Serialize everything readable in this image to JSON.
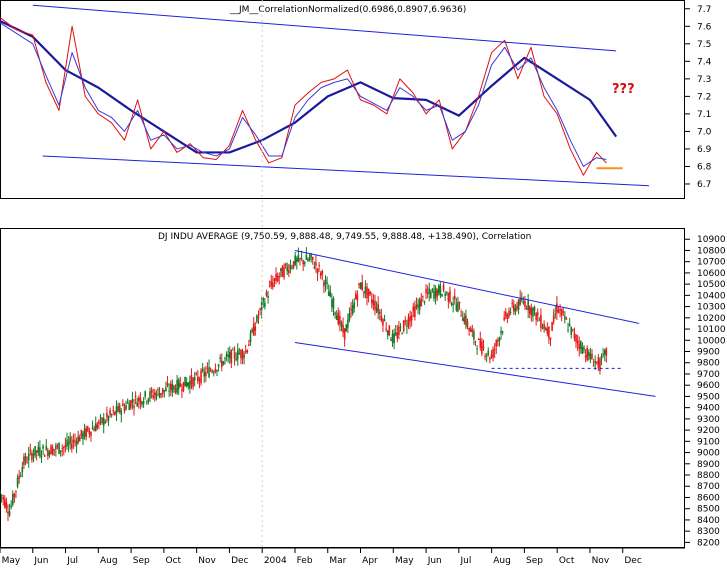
{
  "colors": {
    "background": "#ffffff",
    "frame": "#000000",
    "trendline": "#1f1fe0",
    "ma_line": "#1a1a9a",
    "price_line": "#e01010",
    "price_line2": "#3a3ad8",
    "up_bar": "#157a28",
    "down_bar": "#e51a1a",
    "marker": "#ff8c1a",
    "annotation": "#d01010"
  },
  "chart_data": [
    {
      "type": "line",
      "title": "__JM__CorrelationNormalized(0.6986,0.8907,6.9636)",
      "annotation": "???",
      "ylim": [
        6.62,
        7.75
      ],
      "yticks": [
        6.7,
        6.8,
        6.9,
        7.0,
        7.1,
        7.2,
        7.3,
        7.4,
        7.5,
        7.6,
        7.7
      ],
      "x_months": [
        "May",
        "Jun",
        "Jul",
        "Aug",
        "Sep",
        "Oct",
        "Nov",
        "Dec",
        "2004",
        "Feb",
        "Mar",
        "Apr",
        "May",
        "Jun",
        "Jul",
        "Aug",
        "Sep",
        "Oct",
        "Nov",
        "Dec"
      ],
      "series": [
        {
          "name": "moving average",
          "x": [
            0,
            1,
            2,
            3,
            4,
            5,
            6,
            7,
            8,
            9,
            10,
            11,
            12,
            13,
            14,
            15,
            16,
            17,
            18,
            18.8
          ],
          "values": [
            7.63,
            7.54,
            7.35,
            7.25,
            7.12,
            7.0,
            6.88,
            6.88,
            6.95,
            7.05,
            7.2,
            7.28,
            7.19,
            7.18,
            7.09,
            7.26,
            7.42,
            7.3,
            7.18,
            6.97
          ]
        },
        {
          "name": "oscillator fast",
          "x": [
            0,
            0.5,
            1,
            1.4,
            1.8,
            2.2,
            2.6,
            3,
            3.4,
            3.8,
            4.2,
            4.6,
            5,
            5.4,
            5.8,
            6.2,
            6.6,
            7,
            7.4,
            7.8,
            8.2,
            8.6,
            9,
            9.4,
            9.8,
            10.2,
            10.6,
            11,
            11.4,
            11.8,
            12.2,
            12.6,
            13,
            13.4,
            13.8,
            14.2,
            14.6,
            15,
            15.4,
            15.8,
            16.2,
            16.6,
            17,
            17.4,
            17.8,
            18.2,
            18.5
          ],
          "values": [
            7.65,
            7.58,
            7.55,
            7.28,
            7.12,
            7.6,
            7.2,
            7.1,
            7.05,
            6.95,
            7.18,
            6.9,
            7.0,
            6.88,
            6.93,
            6.85,
            6.84,
            6.92,
            7.12,
            6.95,
            6.82,
            6.85,
            7.15,
            7.22,
            7.28,
            7.3,
            7.35,
            7.18,
            7.15,
            7.1,
            7.3,
            7.22,
            7.1,
            7.18,
            6.9,
            7.0,
            7.2,
            7.45,
            7.52,
            7.3,
            7.48,
            7.2,
            7.1,
            6.9,
            6.75,
            6.88,
            6.82
          ]
        },
        {
          "name": "oscillator slow",
          "x": [
            0,
            0.5,
            1,
            1.4,
            1.8,
            2.2,
            2.6,
            3,
            3.4,
            3.8,
            4.2,
            4.6,
            5,
            5.4,
            5.8,
            6.2,
            6.6,
            7,
            7.4,
            7.8,
            8.2,
            8.6,
            9,
            9.4,
            9.8,
            10.2,
            10.6,
            11,
            11.4,
            11.8,
            12.2,
            12.6,
            13,
            13.4,
            13.8,
            14.2,
            14.6,
            15,
            15.4,
            15.8,
            16.2,
            16.6,
            17,
            17.4,
            17.8,
            18.2,
            18.5
          ],
          "values": [
            7.62,
            7.56,
            7.5,
            7.32,
            7.15,
            7.45,
            7.25,
            7.12,
            7.08,
            7.0,
            7.12,
            6.95,
            6.98,
            6.9,
            6.92,
            6.88,
            6.86,
            6.9,
            7.08,
            6.98,
            6.86,
            6.86,
            7.08,
            7.18,
            7.25,
            7.28,
            7.3,
            7.2,
            7.16,
            7.12,
            7.25,
            7.2,
            7.12,
            7.15,
            6.95,
            7.0,
            7.15,
            7.38,
            7.48,
            7.35,
            7.42,
            7.25,
            7.12,
            6.95,
            6.8,
            6.85,
            6.84
          ]
        },
        {
          "name": "upper channel",
          "x": [
            1.0,
            18.8
          ],
          "values": [
            7.72,
            7.46
          ]
        },
        {
          "name": "lower channel",
          "x": [
            1.3,
            19.8
          ],
          "values": [
            6.86,
            6.69
          ]
        },
        {
          "name": "support marker",
          "x": [
            18.2,
            19.0
          ],
          "values": [
            6.79,
            6.79
          ]
        }
      ]
    },
    {
      "type": "candlestick",
      "title": "DJ INDU AVERAGE (9,750.59, 9,888.48, 9,749.55, 9,888.48, +138.490), Correlation",
      "ylim": [
        8150,
        11000
      ],
      "yticks": [
        8200,
        8300,
        8400,
        8500,
        8600,
        8700,
        8800,
        8900,
        9000,
        9100,
        9200,
        9300,
        9400,
        9500,
        9600,
        9700,
        9800,
        9900,
        10000,
        10100,
        10200,
        10300,
        10400,
        10500,
        10600,
        10700,
        10800,
        10900
      ],
      "x_months": [
        "May",
        "Jun",
        "Jul",
        "Aug",
        "Sep",
        "Oct",
        "Nov",
        "Dec",
        "2004",
        "Feb",
        "Mar",
        "Apr",
        "May",
        "Jun",
        "Jul",
        "Aug",
        "Sep",
        "Oct",
        "Nov",
        "Dec"
      ],
      "price_path": {
        "x": [
          0,
          0.3,
          0.7,
          1,
          2,
          3,
          4,
          5,
          6,
          7,
          7.5,
          8,
          8.3,
          8.6,
          9,
          9.5,
          9.8,
          10.2,
          10.5,
          11,
          11.5,
          12,
          12.5,
          13,
          13.5,
          14,
          14.5,
          15,
          15.5,
          16,
          16.3,
          16.8,
          17,
          17.3,
          17.6,
          18,
          18.3,
          18.5
        ],
        "values": [
          8650,
          8480,
          8900,
          9000,
          9050,
          9250,
          9450,
          9550,
          9650,
          9850,
          9900,
          10300,
          10500,
          10600,
          10700,
          10720,
          10600,
          10300,
          10050,
          10500,
          10300,
          10000,
          10200,
          10400,
          10450,
          10300,
          10000,
          9850,
          10250,
          10350,
          10250,
          10050,
          10300,
          10150,
          10000,
          9850,
          9780,
          9888
        ]
      },
      "series": [
        {
          "name": "upper channel",
          "x": [
            9.0,
            19.5
          ],
          "values": [
            10800,
            10150
          ]
        },
        {
          "name": "lower channel",
          "x": [
            9.0,
            20.0
          ],
          "values": [
            9980,
            9500
          ]
        },
        {
          "name": "support level",
          "x": [
            15.0,
            19.0
          ],
          "values": [
            9750,
            9750
          ]
        }
      ]
    }
  ]
}
